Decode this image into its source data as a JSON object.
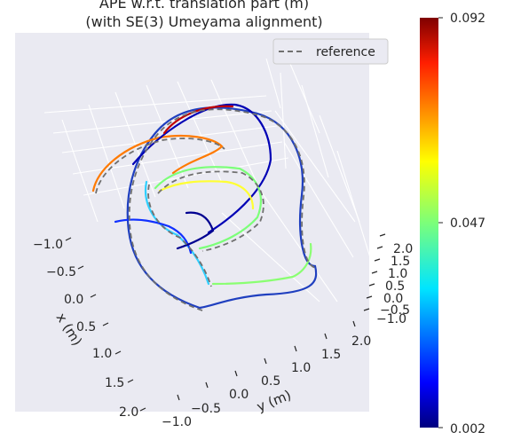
{
  "chart_data": {
    "type": "line",
    "title_line1": "APE w.r.t. translation part (m)",
    "title_line2": "(with SE(3) Umeyama alignment)",
    "projection": "3d",
    "xlabel": "x (m)",
    "ylabel": "y (m)",
    "zlabel": "",
    "x_ticks": [
      "−1.0",
      "−0.5",
      "0.0",
      "0.5",
      "1.0",
      "1.5",
      "2.0"
    ],
    "y_ticks": [
      "−1.0",
      "−0.5",
      "0.0",
      "0.5",
      "1.0",
      "1.5",
      "2.0"
    ],
    "z_ticks": [
      "−1.0",
      "−0.5",
      "0.0",
      "0.5",
      "1.0",
      "1.5",
      "2.0"
    ],
    "legend": {
      "entries": [
        "reference"
      ],
      "placement": "top-right"
    },
    "colorbar": {
      "colormap": "jet",
      "min": 0.002,
      "max": 0.092,
      "ticks": [
        "0.002",
        "0.047",
        "0.092"
      ]
    },
    "series": [
      {
        "name": "reference",
        "style": "dashed",
        "color": "#707070"
      },
      {
        "style": "colormapped",
        "colormap": "jet"
      }
    ],
    "grid": true,
    "background": "#e8e9f0"
  }
}
